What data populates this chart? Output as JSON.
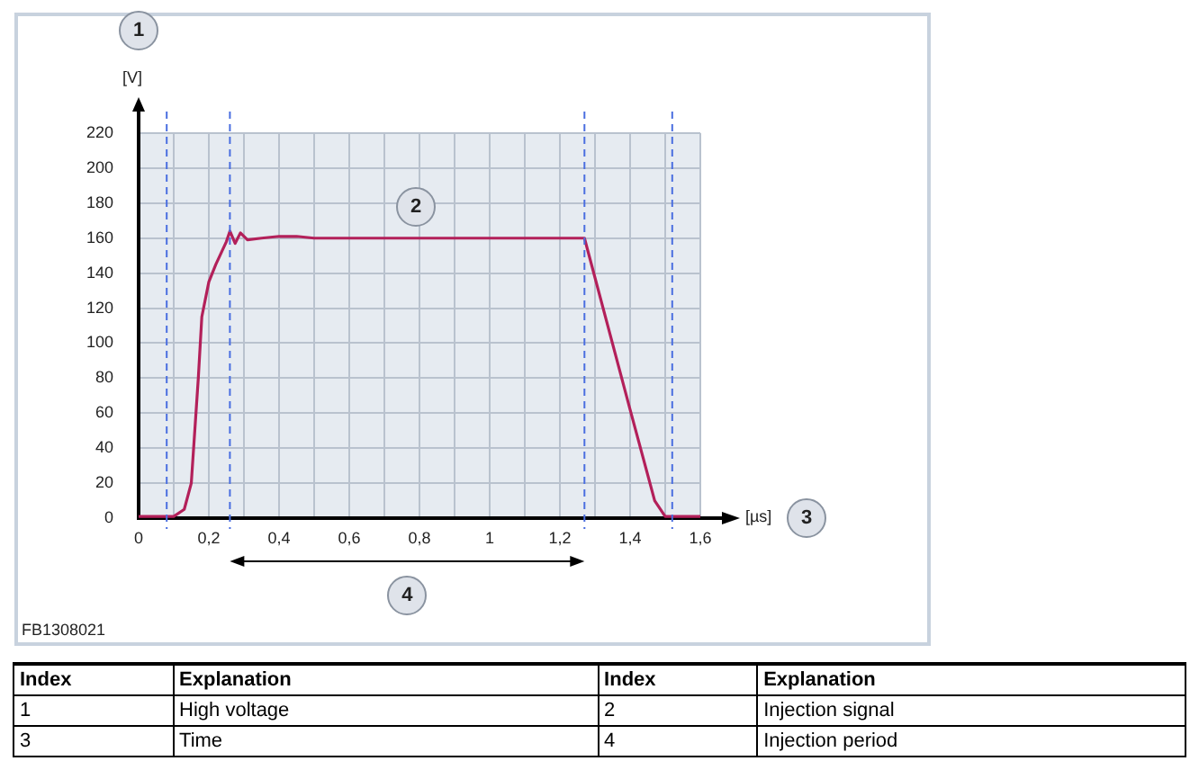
{
  "chart_data": {
    "type": "line",
    "xlabel": "[µs]",
    "ylabel": "[V]",
    "x": [
      0,
      0.08,
      0.1,
      0.13,
      0.15,
      0.17,
      0.18,
      0.2,
      0.22,
      0.25,
      0.26,
      0.275,
      0.29,
      0.31,
      0.35,
      0.4,
      0.45,
      0.5,
      1.27,
      1.4,
      1.47,
      1.5,
      1.6
    ],
    "series": [
      {
        "color": "#b3205a",
        "values": [
          1,
          1,
          1,
          5,
          20,
          80,
          115,
          135,
          145,
          158,
          164,
          157,
          163,
          159,
          160,
          161,
          161,
          160,
          160,
          62,
          10,
          1,
          1
        ]
      }
    ],
    "xlim": [
      0,
      1.6
    ],
    "ylim": [
      0,
      220
    ],
    "xticks": [
      0,
      {
        "value": 0.1,
        "label": null
      },
      {
        "value": 0.2,
        "label": "0,2"
      },
      {
        "value": 0.3,
        "label": null
      },
      {
        "value": 0.4,
        "label": "0,4"
      },
      {
        "value": 0.5,
        "label": null
      },
      {
        "value": 0.6,
        "label": "0,6"
      },
      {
        "value": 0.7,
        "label": null
      },
      {
        "value": 0.8,
        "label": "0,8"
      },
      {
        "value": 0.9,
        "label": null
      },
      1,
      {
        "value": 1.1,
        "label": null
      },
      {
        "value": 1.2,
        "label": "1,2"
      },
      {
        "value": 1.3,
        "label": null
      },
      {
        "value": 1.4,
        "label": "1,4"
      },
      {
        "value": 1.5,
        "label": null
      },
      {
        "value": 1.6,
        "label": "1,6"
      }
    ],
    "yticks": [
      0,
      20,
      40,
      60,
      80,
      100,
      120,
      140,
      160,
      180,
      200,
      220
    ],
    "ref_lines": [
      {
        "axis": "x",
        "value": 0.08,
        "color": "#4a6ee0",
        "line_style": "dashed"
      },
      {
        "axis": "x",
        "value": 0.26,
        "color": "#4a6ee0",
        "line_style": "dashed"
      },
      {
        "axis": "x",
        "value": 1.27,
        "color": "#4a6ee0",
        "line_style": "dashed"
      },
      {
        "axis": "x",
        "value": 1.52,
        "color": "#4a6ee0",
        "line_style": "dashed"
      }
    ],
    "grid": true,
    "legend": false,
    "marker": "none",
    "line_style": "solid",
    "annotations": [
      "1",
      {
        "text": "2",
        "x": 0.79,
        "y": 178
      },
      "3",
      "4",
      "FB1308021",
      "Index",
      "Explanation",
      "Index",
      "Explanation",
      "1",
      "High voltage",
      "2",
      "Injection signal",
      "3",
      "Time",
      "4",
      "Injection period"
    ]
  }
}
